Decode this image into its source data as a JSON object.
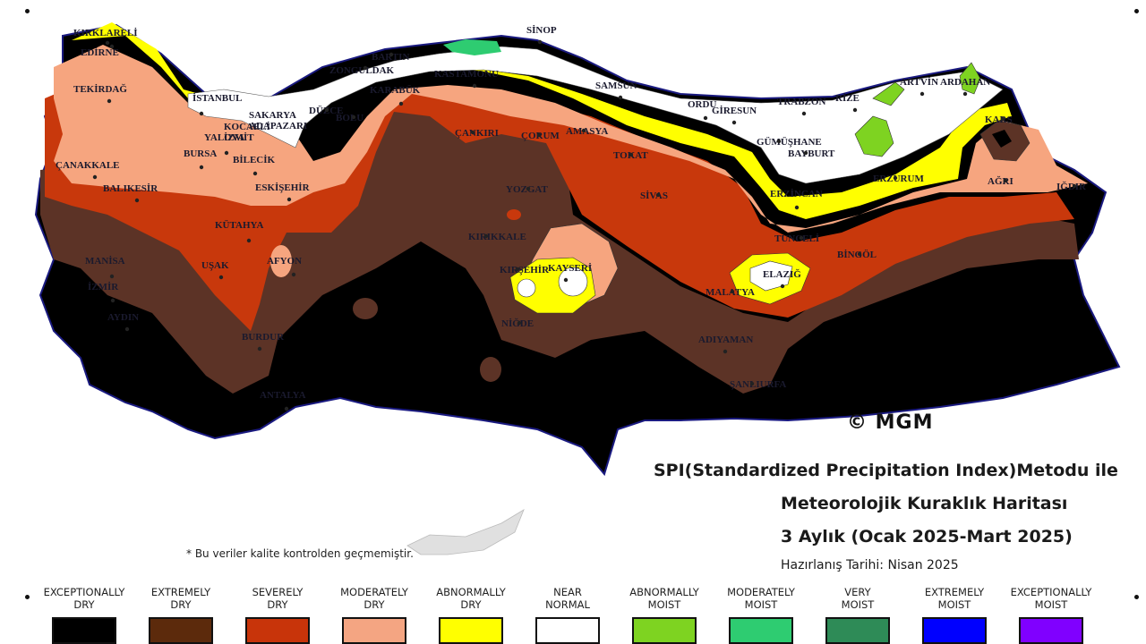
{
  "map": {
    "credit": "© MGM",
    "cities": [
      "KIRKLARELİ",
      "EDİRNE",
      "TEKİRDAĞ",
      "İSTANBUL",
      "ÇANAKKALE",
      "YALOVA",
      "BURSA",
      "BİLECİK",
      "BALIKESİR",
      "ESKİŞEHİR",
      "KÜTAHYA",
      "MANİSA",
      "İZMİR",
      "UŞAK",
      "AFYON",
      "AYDIN",
      "BURDUR",
      "ANTALYA",
      "BARTIN",
      "ZONGULDAK",
      "KARABÜK",
      "KASTAMONU",
      "SİNOP",
      "SAMSUN",
      "ORDU",
      "GİRESUN",
      "TRABZON",
      "RİZE",
      "ARTVİN",
      "ARDAHAN",
      "KARS",
      "IĞDIR",
      "AĞRI",
      "ERZURUM",
      "BAYBURT",
      "GÜMÜŞHANE",
      "ERZİNCAN",
      "TUNCELİ",
      "BİNGÖL",
      "ELAZIĞ",
      "MALATYA",
      "ADIYAMAN",
      "ŞANLIURFA",
      "SİVAS",
      "TOKAT",
      "AMASYA",
      "ÇORUM",
      "YOZGAT",
      "KIRIKKALE",
      "KAYSERİ",
      "NİĞDE",
      "KIRŞEHİR",
      "ÇANKIRI",
      "DÜZCE",
      "BOLU",
      "SAKARYA",
      "ADAPAZARI",
      "KOCAELİ",
      "İZMİT"
    ]
  },
  "title": {
    "line1": "SPI(Standardized Precipitation Index)Metodu ile",
    "line2": "Meteorolojik Kuraklık Haritası",
    "line3": "3 Aylık (Ocak 2025-Mart 2025)",
    "line4": "Hazırlanış Tarihi: Nisan 2025"
  },
  "note": "* Bu veriler kalite kontrolden geçmemiştir.",
  "legend": [
    {
      "line1": "EXCEPTIONALLY",
      "line2": "DRY",
      "color": "#000000"
    },
    {
      "line1": "EXTREMELY",
      "line2": "DRY",
      "color": "#5c2a0c"
    },
    {
      "line1": "SEVERELY",
      "line2": "DRY",
      "color": "#c8340a"
    },
    {
      "line1": "MODERATELY",
      "line2": "DRY",
      "color": "#f4a582"
    },
    {
      "line1": "ABNORMALLY",
      "line2": "DRY",
      "color": "#ffff00"
    },
    {
      "line1": "NEAR",
      "line2": "NORMAL",
      "color": "#ffffff"
    },
    {
      "line1": "ABNORMALLY",
      "line2": "MOIST",
      "color": "#7ed321"
    },
    {
      "line1": "MODERATELY",
      "line2": "MOIST",
      "color": "#2ecc71"
    },
    {
      "line1": "VERY",
      "line2": "MOIST",
      "color": "#2e8b57"
    },
    {
      "line1": "EXTREMELY",
      "line2": "MOIST",
      "color": "#0000ff"
    },
    {
      "line1": "EXCEPTIONALLY",
      "line2": "MOIST",
      "color": "#8000ff"
    }
  ]
}
